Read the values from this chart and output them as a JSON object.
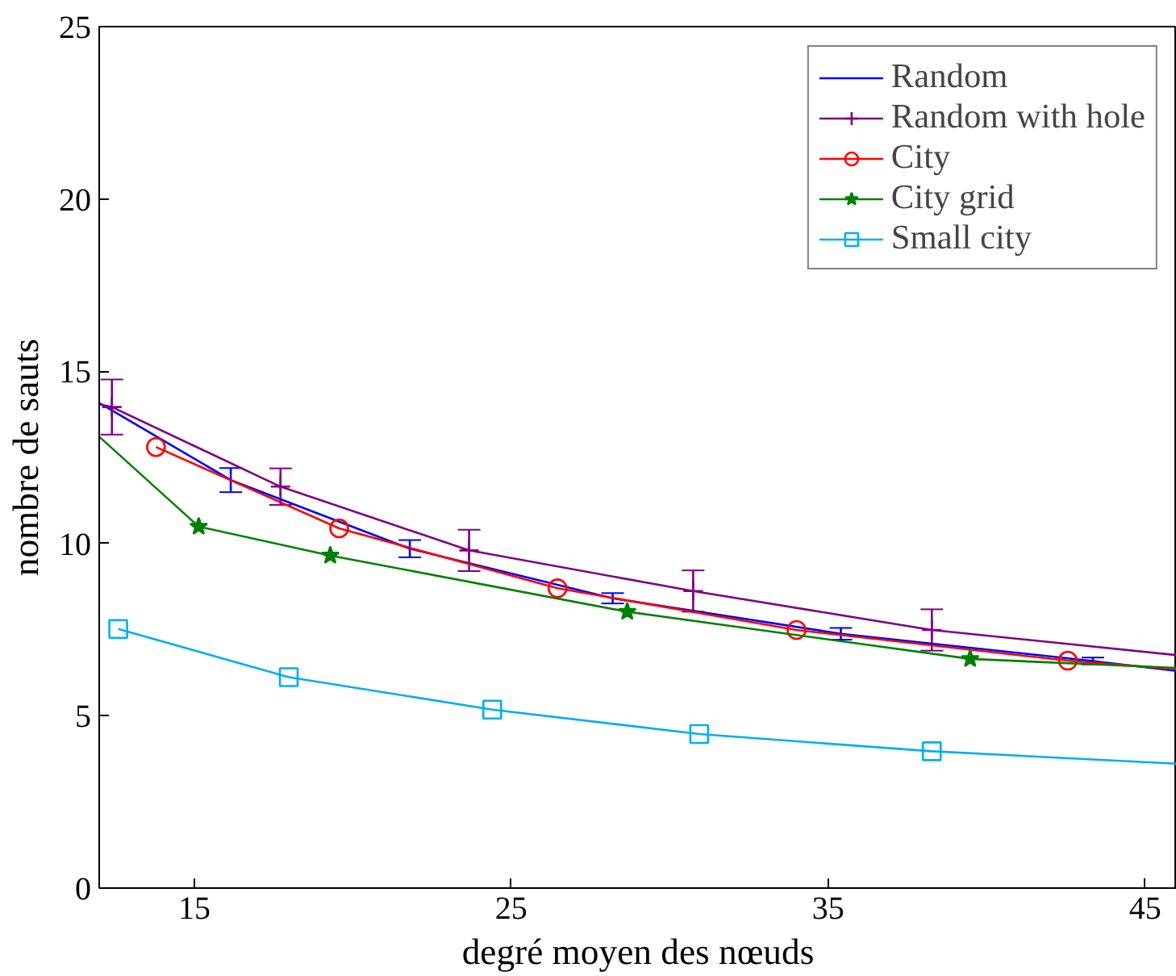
{
  "chart_data": {
    "type": "line",
    "xlabel": "degré moyen des nœuds",
    "ylabel": "nombre de sauts",
    "xlim": [
      12,
      46
    ],
    "ylim": [
      0,
      25
    ],
    "xticks": [
      15,
      25,
      35,
      45
    ],
    "yticks": [
      0,
      5,
      10,
      15,
      20,
      25
    ],
    "grid": false,
    "legend": "top right",
    "series": [
      {
        "name": "Random",
        "color": "#0000ff",
        "marker": "none",
        "x": [
          12,
          16.15,
          21.8,
          28.2,
          35.4,
          43.35,
          46
        ],
        "values": [
          14.08,
          11.84,
          9.85,
          8.41,
          7.38,
          6.59,
          6.3
        ],
        "errors": [
          null,
          0.35,
          0.25,
          0.15,
          0.17,
          0.1,
          null
        ]
      },
      {
        "name": "Random with hole",
        "color": "#800080",
        "marker": "cross",
        "x": [
          12,
          12.4,
          17.72,
          23.67,
          30.74,
          38.27,
          46
        ],
        "values": [
          14.04,
          13.96,
          11.65,
          9.8,
          8.62,
          7.49,
          6.76
        ],
        "errors": [
          null,
          0.8,
          0.53,
          0.6,
          0.6,
          0.6,
          null
        ]
      },
      {
        "name": "City",
        "color": "#ff0000",
        "marker": "circle",
        "x": [
          13.79,
          19.57,
          26.46,
          34.0,
          42.56,
          46
        ],
        "values": [
          12.8,
          10.44,
          8.7,
          7.49,
          6.6,
          6.35
        ]
      },
      {
        "name": "City grid",
        "color": "#008000",
        "marker": "star",
        "x": [
          12,
          15.14,
          19.29,
          28.66,
          39.48,
          46
        ],
        "values": [
          13.1,
          10.49,
          9.65,
          8.02,
          6.65,
          6.39
        ]
      },
      {
        "name": "Small city",
        "color": "#00aeef",
        "marker": "square",
        "x": [
          12.6,
          17.98,
          24.4,
          30.93,
          38.27,
          46
        ],
        "values": [
          7.52,
          6.12,
          5.18,
          4.47,
          3.97,
          3.61
        ]
      }
    ]
  }
}
